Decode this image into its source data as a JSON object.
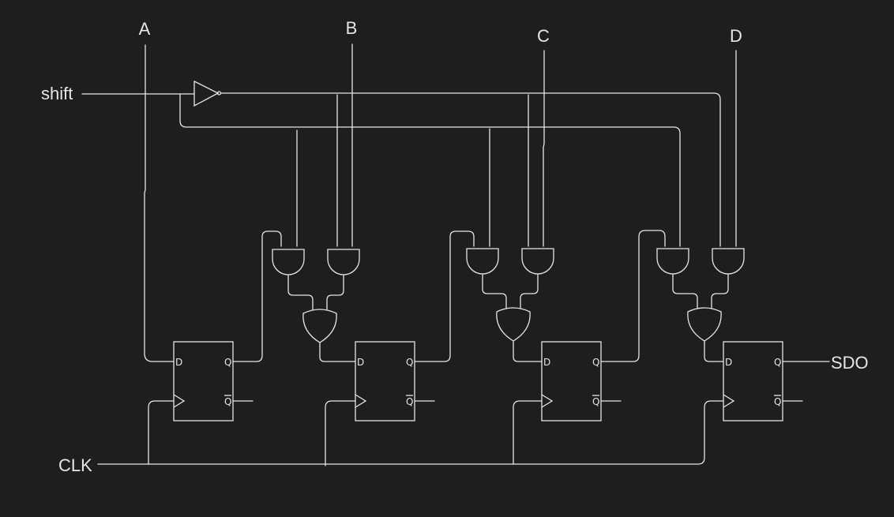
{
  "signals": {
    "a": "A",
    "b": "B",
    "c": "C",
    "d": "D",
    "shift": "shift",
    "clk": "CLK",
    "sdo": "SDO"
  },
  "pins": {
    "d": "D",
    "q": "Q",
    "qbar": "Q"
  },
  "colors": {
    "background": "#1e1e1e",
    "stroke": "#e6e6e6"
  }
}
